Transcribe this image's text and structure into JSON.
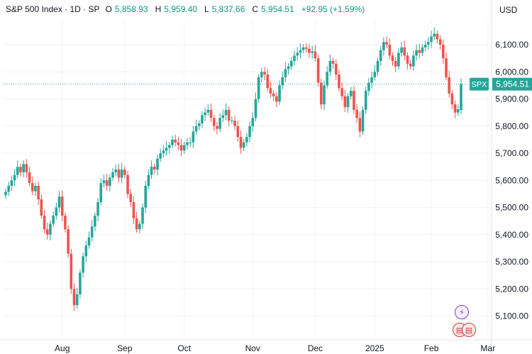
{
  "legend": {
    "title": "S&P 500 Index · 1D · SP",
    "o_label": "O",
    "o_value": "5,858.93",
    "h_label": "H",
    "h_value": "5,959.40",
    "l_label": "L",
    "l_value": "5,837.66",
    "c_label": "C",
    "c_value": "5,954.51",
    "change": "+92.95 (+1.59%)"
  },
  "currency": "USD",
  "badges": {
    "event_icon": "lightning-icon",
    "flag_icon": "us-flag-icon"
  },
  "colors": {
    "up": "#26a69a",
    "down": "#ef5350",
    "price_line": "#26a69a",
    "grid": "#f0f3fa"
  },
  "chart_data": {
    "type": "candlestick",
    "symbol_tag": "SPX",
    "last_price": 5954.51,
    "last_price_label": "5,954.51",
    "ylim": [
      5050,
      6160
    ],
    "y_ticks": [
      {
        "value": 6100,
        "label": "6,100.00"
      },
      {
        "value": 6000,
        "label": "6,000.00"
      },
      {
        "value": 5900,
        "label": "5,900.00"
      },
      {
        "value": 5800,
        "label": "5,800.00"
      },
      {
        "value": 5700,
        "label": "5,700.00"
      },
      {
        "value": 5600,
        "label": "5,600.00"
      },
      {
        "value": 5500,
        "label": "5,500.00"
      },
      {
        "value": 5400,
        "label": "5,400.00"
      },
      {
        "value": 5300,
        "label": "5,300.00"
      },
      {
        "value": 5200,
        "label": "5,200.00"
      },
      {
        "value": 5100,
        "label": "5,100.00"
      }
    ],
    "x_ticks": [
      {
        "index": 19,
        "label": "Aug"
      },
      {
        "index": 40,
        "label": "Sep"
      },
      {
        "index": 60,
        "label": "Oct"
      },
      {
        "index": 83,
        "label": "Nov"
      },
      {
        "index": 104,
        "label": "Dec"
      },
      {
        "index": 124,
        "label": "2025"
      },
      {
        "index": 143,
        "label": "Feb"
      },
      {
        "index": 162,
        "label": "Mar"
      }
    ],
    "close": [
      5558,
      5580,
      5600,
      5620,
      5650,
      5630,
      5660,
      5630,
      5590,
      5560,
      5580,
      5530,
      5470,
      5420,
      5400,
      5440,
      5470,
      5500,
      5540,
      5470,
      5420,
      5330,
      5200,
      5140,
      5180,
      5260,
      5320,
      5360,
      5390,
      5430,
      5470,
      5520,
      5590,
      5600,
      5580,
      5610,
      5630,
      5640,
      5610,
      5640,
      5620,
      5550,
      5520,
      5460,
      5420,
      5440,
      5500,
      5580,
      5620,
      5650,
      5640,
      5680,
      5700,
      5710,
      5720,
      5730,
      5750,
      5740,
      5730,
      5710,
      5730,
      5740,
      5740,
      5780,
      5800,
      5810,
      5840,
      5850,
      5860,
      5830,
      5800,
      5790,
      5830,
      5840,
      5860,
      5820,
      5820,
      5800,
      5760,
      5720,
      5740,
      5760,
      5800,
      5830,
      5900,
      5980,
      6000,
      5990,
      5940,
      5920,
      5910,
      5890,
      5950,
      5980,
      6010,
      6020,
      6040,
      6060,
      6070,
      6080,
      6090,
      6085,
      6070,
      6075,
      6050,
      5960,
      5880,
      5950,
      6000,
      6040,
      6030,
      5990,
      5940,
      5910,
      5870,
      5910,
      5930,
      5860,
      5830,
      5780,
      5860,
      5930,
      5960,
      5980,
      6000,
      6040,
      6080,
      6110,
      6100,
      6060,
      6040,
      6020,
      6070,
      6090,
      6060,
      6030,
      6020,
      6060,
      6080,
      6070,
      6090,
      6100,
      6110,
      6130,
      6140,
      6120,
      6100,
      6050,
      5980,
      5920,
      5880,
      5850,
      5862,
      5955
    ],
    "open": [
      5545,
      5558,
      5580,
      5600,
      5620,
      5650,
      5630,
      5660,
      5630,
      5590,
      5560,
      5580,
      5530,
      5470,
      5420,
      5400,
      5440,
      5470,
      5500,
      5540,
      5470,
      5420,
      5330,
      5200,
      5140,
      5180,
      5260,
      5320,
      5360,
      5390,
      5430,
      5470,
      5520,
      5590,
      5600,
      5580,
      5610,
      5630,
      5640,
      5610,
      5640,
      5620,
      5550,
      5520,
      5460,
      5420,
      5440,
      5500,
      5580,
      5620,
      5650,
      5640,
      5680,
      5700,
      5710,
      5720,
      5730,
      5750,
      5740,
      5730,
      5710,
      5730,
      5740,
      5740,
      5780,
      5800,
      5810,
      5840,
      5850,
      5860,
      5830,
      5800,
      5790,
      5830,
      5840,
      5860,
      5820,
      5820,
      5800,
      5760,
      5720,
      5740,
      5760,
      5800,
      5830,
      5900,
      5980,
      6000,
      5990,
      5940,
      5920,
      5910,
      5890,
      5950,
      5980,
      6010,
      6020,
      6040,
      6060,
      6070,
      6080,
      6090,
      6085,
      6070,
      6075,
      6050,
      5960,
      5880,
      5950,
      6000,
      6040,
      6030,
      5990,
      5940,
      5910,
      5870,
      5910,
      5930,
      5860,
      5830,
      5780,
      5860,
      5930,
      5960,
      5980,
      6000,
      6040,
      6080,
      6110,
      6100,
      6060,
      6040,
      6020,
      6070,
      6090,
      6060,
      6030,
      6020,
      6060,
      6080,
      6070,
      6090,
      6100,
      6110,
      6130,
      6140,
      6120,
      6100,
      6050,
      5980,
      5920,
      5880,
      5850,
      5859
    ]
  }
}
